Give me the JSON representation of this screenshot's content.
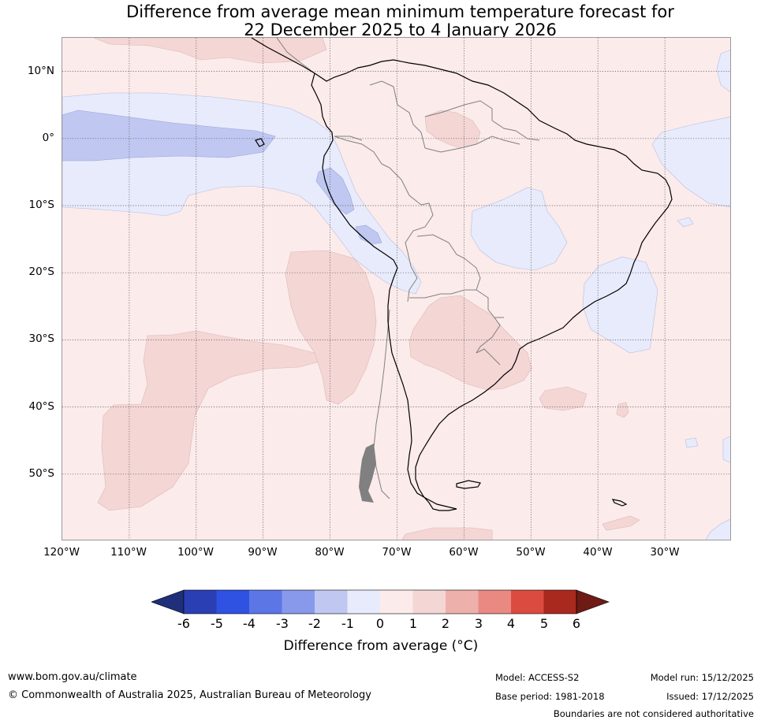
{
  "title": {
    "line1": "Difference from average mean minimum temperature forecast for",
    "line2": "22 December 2025 to 4 January 2026"
  },
  "map": {
    "lat_labels": [
      "10°N",
      "0°",
      "10°S",
      "20°S",
      "30°S",
      "40°S",
      "50°S"
    ],
    "lon_labels": [
      "120°W",
      "110°W",
      "100°W",
      "90°W",
      "80°W",
      "70°W",
      "60°W",
      "50°W",
      "40°W",
      "30°W"
    ],
    "colors": {
      "bg_anomaly_0_1": "#fbebea",
      "anomaly_1_2": "#f4d6d5",
      "anomaly_neg1_0": "#e8ebfb",
      "anomaly_neg2_neg1": "#c0c8f1",
      "coast": "#000000",
      "borders": "#808080"
    }
  },
  "colorbar": {
    "ticks": [
      "-6",
      "-5",
      "-4",
      "-3",
      "-2",
      "-1",
      "0",
      "1",
      "2",
      "3",
      "4",
      "5",
      "6"
    ],
    "colors": [
      "#1f2f7a",
      "#2a3fb3",
      "#3052e2",
      "#5d76e6",
      "#8899ec",
      "#c0c8f1",
      "#e8ebfb",
      "#fbebea",
      "#f4d6d5",
      "#eeb0ab",
      "#e98981",
      "#dc4b3f",
      "#a9291f",
      "#6e1a15"
    ],
    "label": "Difference from average (°C)"
  },
  "footer": {
    "website": "www.bom.gov.au/climate",
    "copyright": "© Commonwealth of Australia 2025, Australian Bureau of Meteorology",
    "model": "Model: ACCESS-S2",
    "base_period": "Base period: 1981-2018",
    "model_run": "Model run: 15/12/2025",
    "issued": "Issued: 17/12/2025",
    "disclaimer": "Boundaries are not considered authoritative"
  }
}
